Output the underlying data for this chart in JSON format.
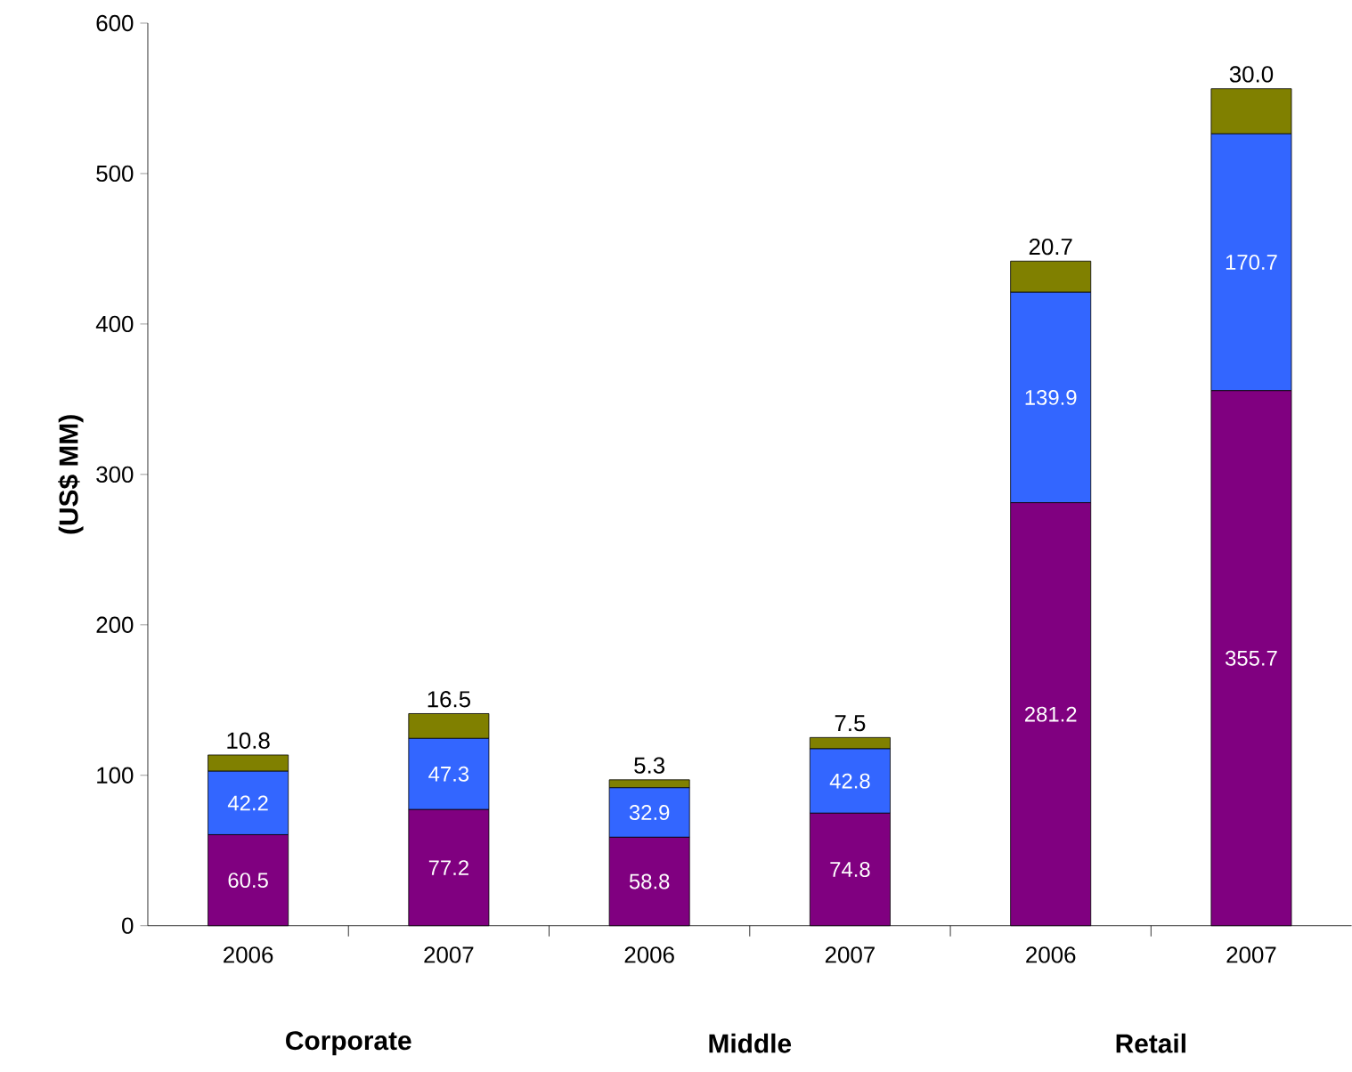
{
  "chart_data": {
    "type": "bar",
    "stacked": true,
    "ylabel": "(US$ MM)",
    "categories": [
      "2006",
      "2007",
      "2006",
      "2007",
      "2006",
      "2007"
    ],
    "series": [
      {
        "color": "#800080",
        "values": [
          60.5,
          77.2,
          58.8,
          74.8,
          281.2,
          355.7
        ],
        "value_labels": [
          "60.5",
          "77.2",
          "58.8",
          "74.8",
          "281.2",
          "355.7"
        ]
      },
      {
        "color": "#3366ff",
        "values": [
          42.2,
          47.3,
          32.9,
          42.8,
          139.9,
          170.7
        ],
        "value_labels": [
          "42.2",
          "47.3",
          "32.9",
          "42.8",
          "139.9",
          "170.7"
        ]
      },
      {
        "color": "#808000",
        "values": [
          10.8,
          16.5,
          5.3,
          7.5,
          20.7,
          30.0
        ],
        "value_labels": [
          "10.8",
          "16.5",
          "5.3",
          "7.5",
          "20.7",
          "30.0"
        ]
      }
    ],
    "ylim": [
      0,
      600
    ],
    "yticks": [
      0,
      100,
      200,
      300,
      400,
      500,
      600
    ],
    "grid": false,
    "annotations": [
      "Corporate",
      "Middle",
      "Retail"
    ]
  }
}
